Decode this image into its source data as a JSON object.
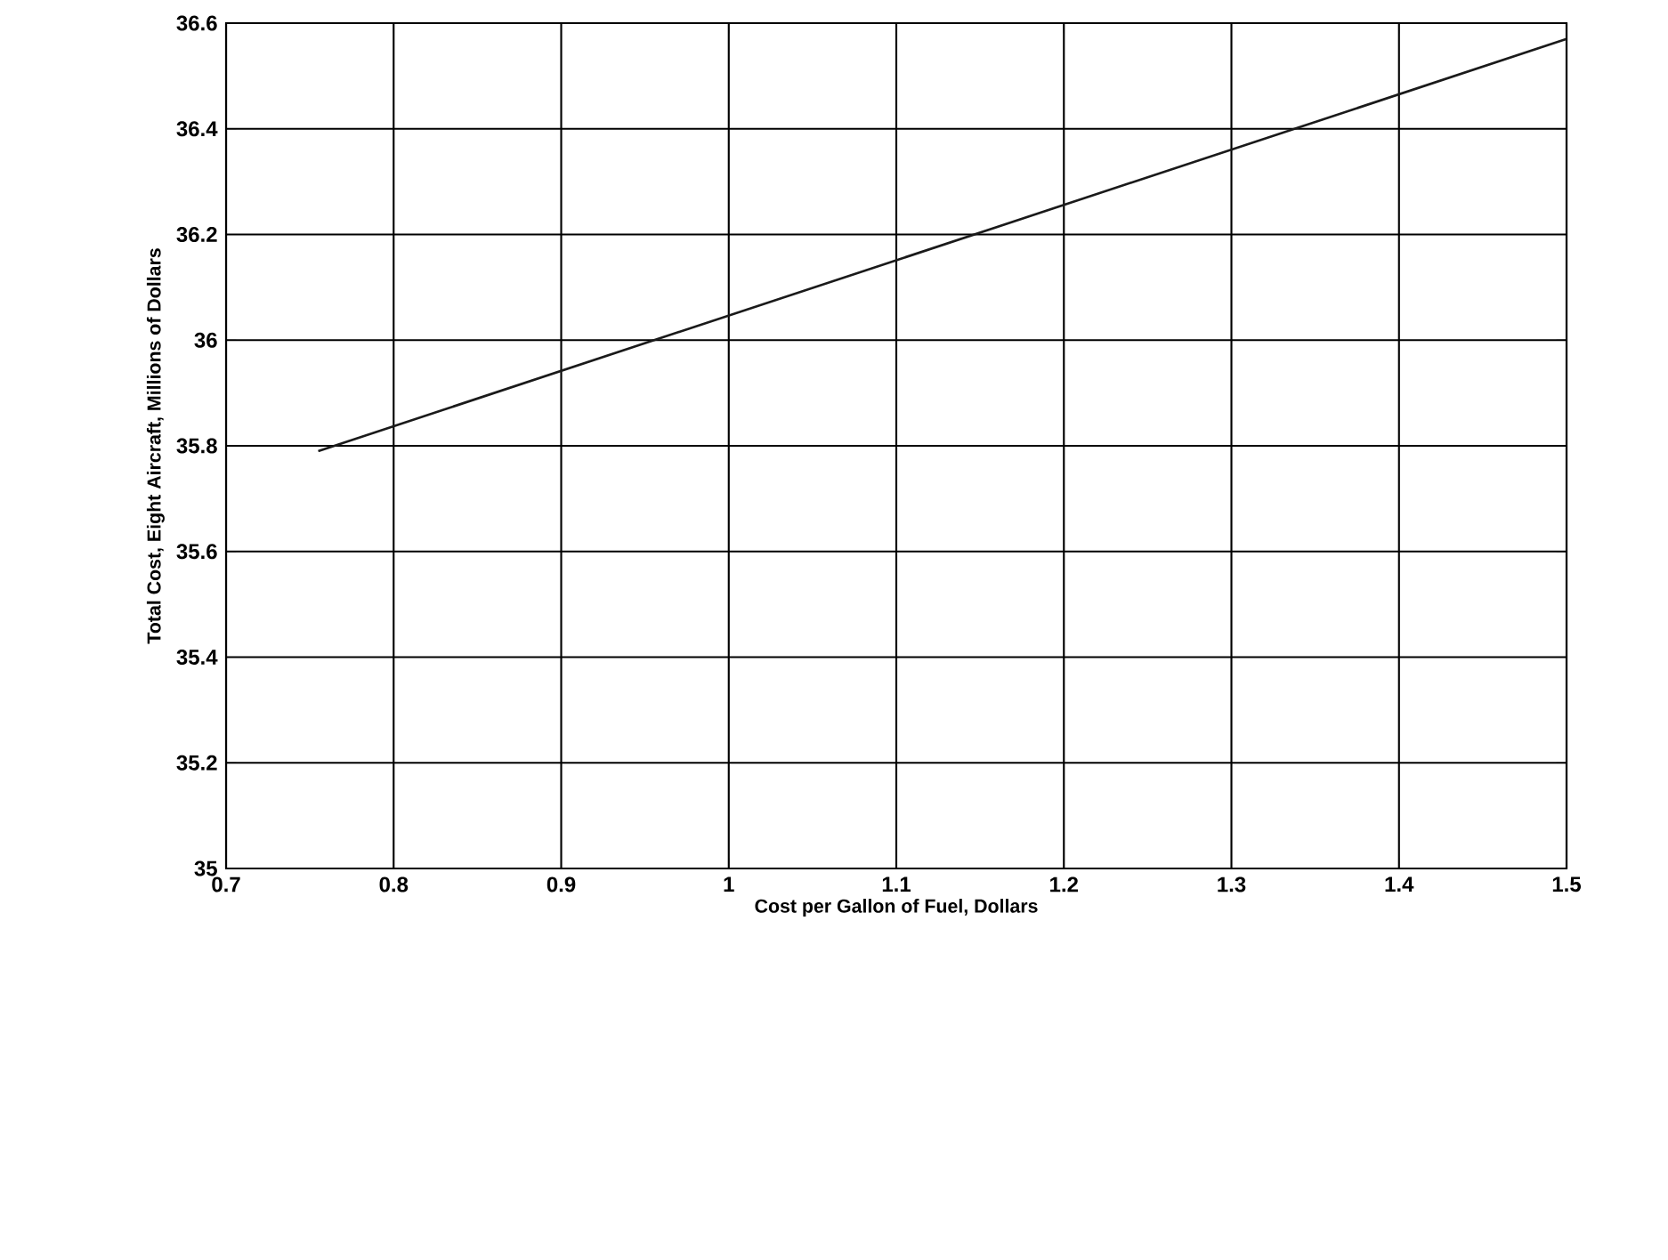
{
  "chart_data": {
    "type": "line",
    "xlabel": "Cost per Gallon of Fuel, Dollars",
    "ylabel": "Total Cost, Eight Aircraft, Millions of Dollars",
    "x": [
      0.755,
      1.5
    ],
    "series": [
      {
        "color": "#1a1a1a",
        "values": [
          35.79,
          36.57
        ]
      }
    ],
    "xlim": [
      0.7,
      1.5
    ],
    "xticks": [
      0.7,
      0.8,
      0.9,
      1,
      1.1,
      1.2,
      1.3,
      1.4,
      1.5
    ],
    "ylim": [
      35,
      36.6
    ],
    "yticks": [
      35,
      35.2,
      35.4,
      35.6,
      35.8,
      36,
      36.2,
      36.4,
      36.6
    ],
    "grid": true,
    "marker": "none",
    "line_style": "solid"
  }
}
